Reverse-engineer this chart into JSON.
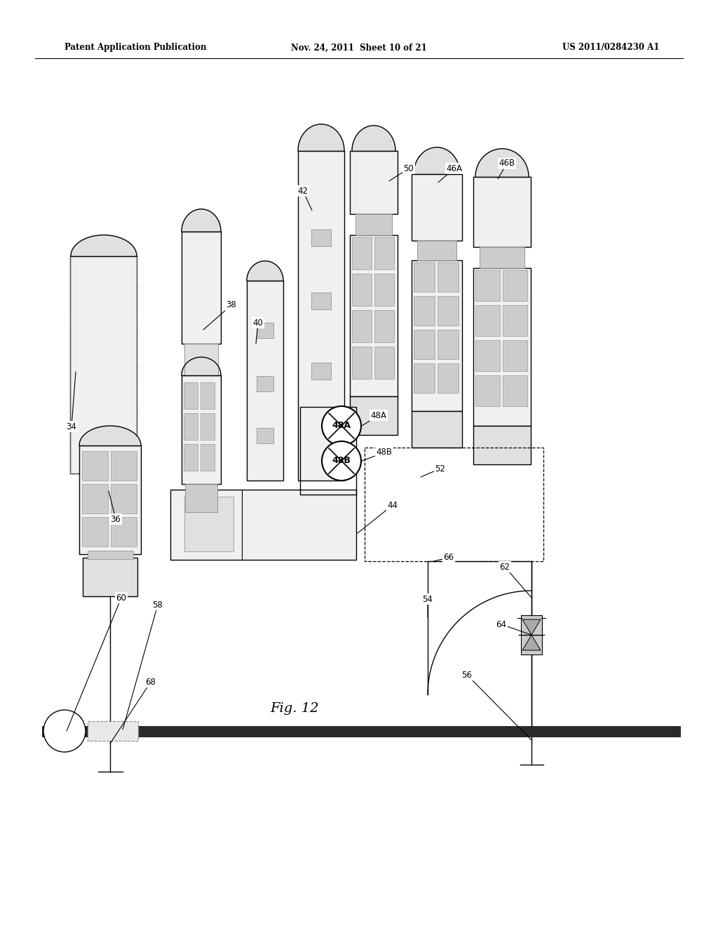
{
  "background_color": "#ffffff",
  "title_left": "Patent Application Publication",
  "title_center": "Nov. 24, 2011  Sheet 10 of 21",
  "title_right": "US 2011/0284230 A1",
  "fig_label": "Fig. 12",
  "lw": 1.0,
  "black": "#000000",
  "gray1": "#f0f0f0",
  "gray2": "#e0e0e0",
  "gray3": "#cccccc",
  "gray4": "#aaaaaa",
  "gray5": "#888888",
  "dark": "#444444",
  "pipe_dark": "#2a2a2a"
}
